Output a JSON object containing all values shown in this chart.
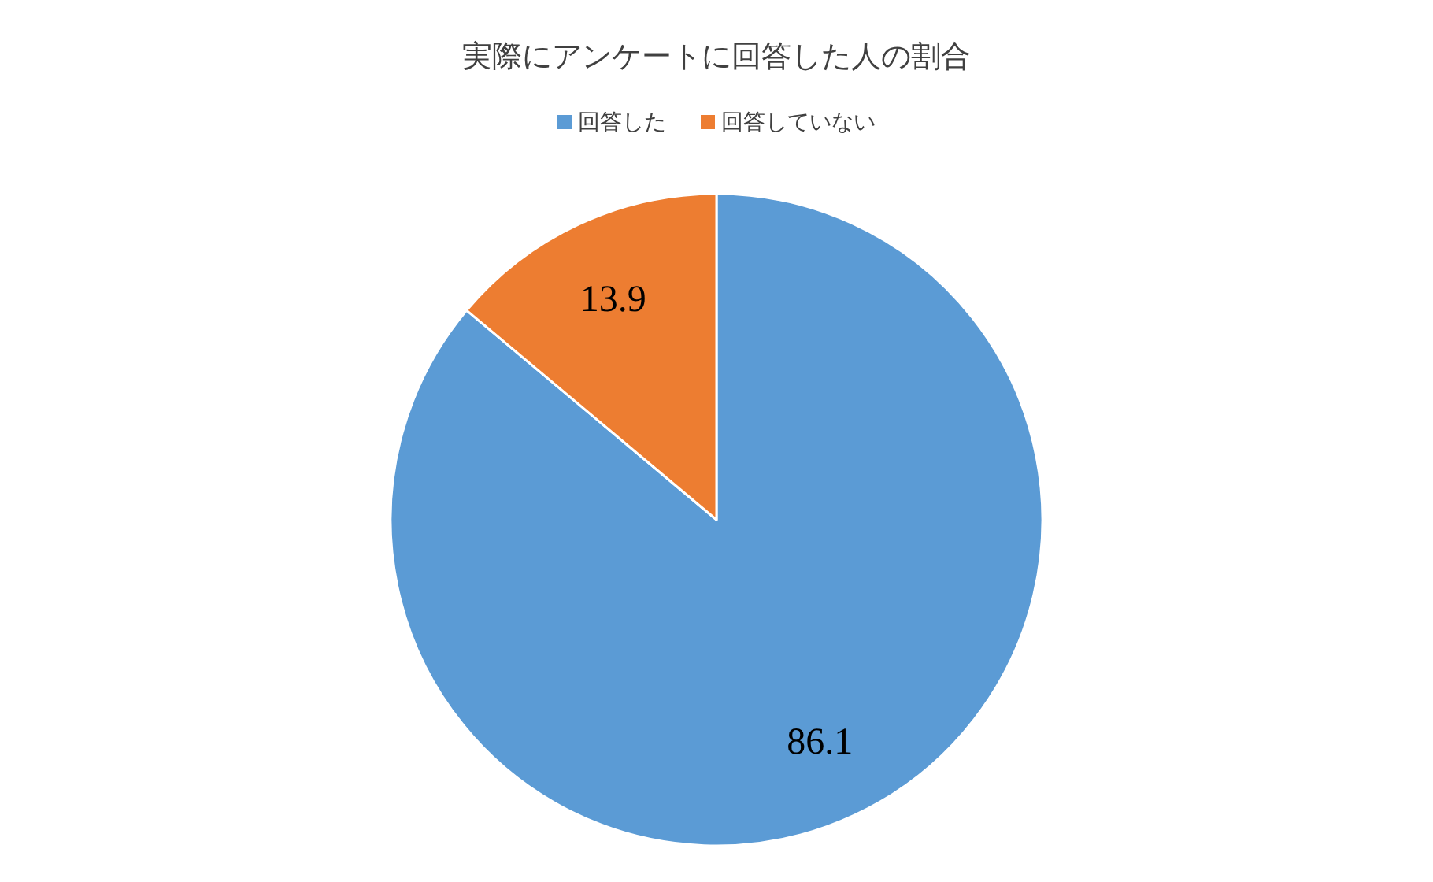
{
  "chart_data": {
    "type": "pie",
    "title": "実際にアンケートに回答した人の割合",
    "categories": [
      "回答した",
      "回答していない"
    ],
    "values": [
      86.1,
      13.9
    ],
    "colors": [
      "#5b9bd5",
      "#ed7d31"
    ],
    "data_labels": true,
    "legend": "top"
  }
}
